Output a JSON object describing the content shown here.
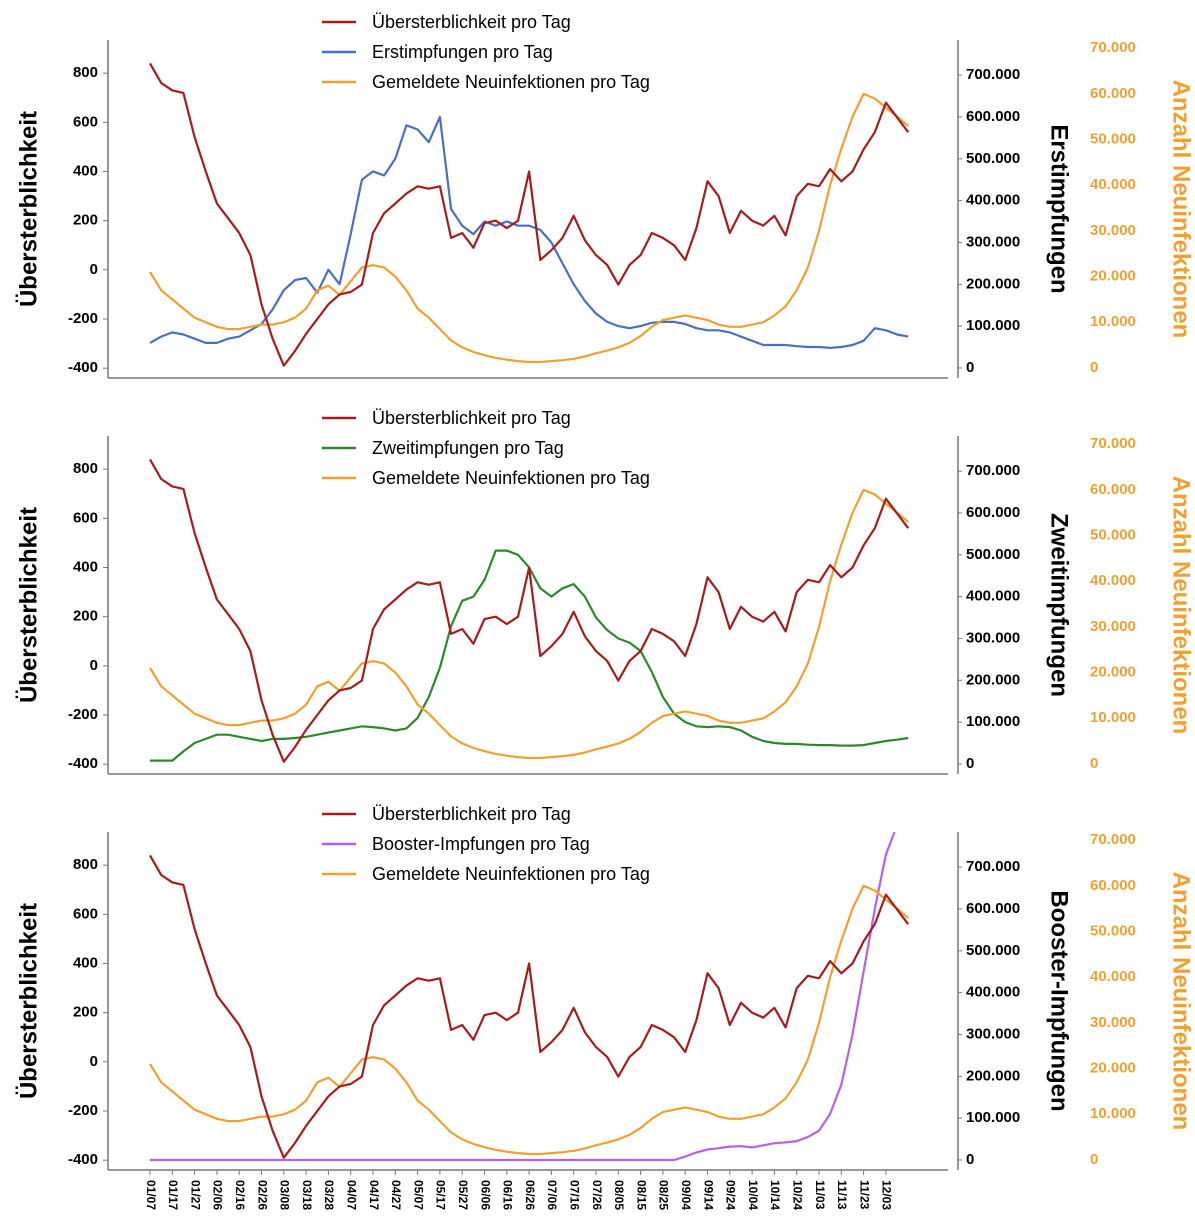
{
  "chart_data": [
    {
      "type": "line",
      "ylabel": "Übersterblichkeit",
      "y2label": "Erstimpfungen",
      "y3label": "Anzahl Neuinfektionen",
      "ylim": [
        -440,
        935
      ],
      "yticks": [
        -400,
        -200,
        0,
        200,
        400,
        600,
        800
      ],
      "y2lim": [
        -24000,
        784000
      ],
      "y2ticks": [
        0,
        {
          "value": 100000,
          "label": "100.000"
        },
        {
          "value": 200000,
          "label": "200.000"
        },
        {
          "value": 300000,
          "label": "300.000"
        },
        {
          "value": 400000,
          "label": "400.000"
        },
        {
          "value": 500000,
          "label": "500.000"
        },
        {
          "value": 600000,
          "label": "600.000"
        },
        {
          "value": 700000,
          "label": "700.000"
        }
      ],
      "y3lim": [
        -2200,
        71800
      ],
      "y3ticks": [
        0,
        {
          "value": 10000,
          "label": "10.000"
        },
        {
          "value": 20000,
          "label": "20.000"
        },
        {
          "value": 30000,
          "label": "30.000"
        },
        {
          "value": 40000,
          "label": "40.000"
        },
        {
          "value": 50000,
          "label": "50.000"
        },
        {
          "value": 60000,
          "label": "60.000"
        },
        {
          "value": 70000,
          "label": "70.000"
        }
      ],
      "series": [
        {
          "name": "Übersterblichkeit pro Tag",
          "color": "#a51c1c",
          "axis": "y",
          "values": [
            840,
            760,
            730,
            720,
            540,
            400,
            270,
            210,
            150,
            60,
            -140,
            -280,
            -390,
            -330,
            -260,
            -200,
            -140,
            -100,
            -90,
            -60,
            150,
            230,
            270,
            310,
            340,
            330,
            340,
            130,
            150,
            90,
            190,
            200,
            170,
            200,
            400,
            40,
            80,
            130,
            220,
            120,
            60,
            20,
            -60,
            20,
            60,
            150,
            130,
            100,
            40,
            170,
            360,
            300,
            150,
            240,
            200,
            180,
            220,
            140,
            300,
            350,
            340,
            410,
            360,
            400,
            490,
            560,
            680,
            620,
            560
          ]
        },
        {
          "name": "Erstimpfungen pro Tag",
          "color": "#4a6fc1",
          "axis": "y2",
          "values": [
            60000,
            75000,
            85000,
            80000,
            70000,
            60000,
            60000,
            70000,
            75000,
            90000,
            105000,
            140000,
            186000,
            210000,
            215000,
            180000,
            235000,
            200000,
            320000,
            450000,
            470000,
            460000,
            500000,
            580000,
            570000,
            540000,
            600000,
            380000,
            340000,
            320000,
            350000,
            340000,
            350000,
            340000,
            340000,
            330000,
            300000,
            250000,
            200000,
            160000,
            130000,
            110000,
            100000,
            95000,
            100000,
            108000,
            110000,
            110000,
            105000,
            95000,
            90000,
            90000,
            85000,
            75000,
            65000,
            55000,
            55000,
            55000,
            52000,
            50000,
            50000,
            48000,
            50000,
            55000,
            65000,
            95000,
            90000,
            80000,
            75000
          ]
        },
        {
          "name": "Gemeldete Neuinfektionen pro Tag",
          "color": "#f0a030",
          "axis": "y3",
          "values": [
            21000,
            17000,
            15000,
            13000,
            11000,
            10000,
            9000,
            8500,
            8500,
            9000,
            9500,
            9500,
            10000,
            11000,
            13000,
            17000,
            18000,
            16000,
            19000,
            22000,
            22500,
            22000,
            20000,
            17000,
            13000,
            11000,
            8500,
            6000,
            4500,
            3500,
            2800,
            2200,
            1800,
            1500,
            1300,
            1300,
            1500,
            1700,
            2000,
            2500,
            3200,
            3800,
            4500,
            5500,
            7000,
            9000,
            10500,
            11000,
            11500,
            11000,
            10500,
            9500,
            9000,
            9000,
            9500,
            10000,
            11500,
            13500,
            17000,
            22000,
            30000,
            40000,
            48000,
            55000,
            60000,
            59000,
            57000,
            55000,
            53000
          ]
        }
      ]
    },
    {
      "type": "line",
      "ylabel": "Übersterblichkeit",
      "y2label": "Zweitimpfungen",
      "y3label": "Anzahl Neuinfektionen",
      "ylim": [
        -440,
        935
      ],
      "yticks": [
        -400,
        -200,
        0,
        200,
        400,
        600,
        800
      ],
      "y2lim": [
        -24000,
        784000
      ],
      "y2ticks": [
        0,
        {
          "value": 100000,
          "label": "100.000"
        },
        {
          "value": 200000,
          "label": "200.000"
        },
        {
          "value": 300000,
          "label": "300.000"
        },
        {
          "value": 400000,
          "label": "400.000"
        },
        {
          "value": 500000,
          "label": "500.000"
        },
        {
          "value": 600000,
          "label": "600.000"
        },
        {
          "value": 700000,
          "label": "700.000"
        }
      ],
      "y3lim": [
        -2200,
        71800
      ],
      "y3ticks": [
        0,
        {
          "value": 10000,
          "label": "10.000"
        },
        {
          "value": 20000,
          "label": "20.000"
        },
        {
          "value": 30000,
          "label": "30.000"
        },
        {
          "value": 40000,
          "label": "40.000"
        },
        {
          "value": 50000,
          "label": "50.000"
        },
        {
          "value": 60000,
          "label": "60.000"
        },
        {
          "value": 70000,
          "label": "70.000"
        }
      ],
      "series": [
        {
          "name": "Übersterblichkeit pro Tag",
          "color": "#a51c1c",
          "axis": "y",
          "values": [
            840,
            760,
            730,
            720,
            540,
            400,
            270,
            210,
            150,
            60,
            -140,
            -280,
            -390,
            -330,
            -260,
            -200,
            -140,
            -100,
            -90,
            -60,
            150,
            230,
            270,
            310,
            340,
            330,
            340,
            130,
            150,
            90,
            190,
            200,
            170,
            200,
            400,
            40,
            80,
            130,
            220,
            120,
            60,
            20,
            -60,
            20,
            60,
            150,
            130,
            100,
            40,
            170,
            360,
            300,
            150,
            240,
            200,
            180,
            220,
            140,
            300,
            350,
            340,
            410,
            360,
            400,
            490,
            560,
            680,
            620,
            560
          ]
        },
        {
          "name": "Zweitimpfungen pro Tag",
          "color": "#2a8a2a",
          "axis": "y2",
          "values": [
            8000,
            8000,
            8000,
            30000,
            50000,
            60000,
            70000,
            70000,
            65000,
            60000,
            55000,
            60000,
            60000,
            62000,
            65000,
            70000,
            75000,
            80000,
            85000,
            90000,
            88000,
            85000,
            80000,
            85000,
            110000,
            160000,
            230000,
            330000,
            390000,
            400000,
            440000,
            510000,
            510000,
            500000,
            470000,
            420000,
            400000,
            420000,
            430000,
            400000,
            350000,
            320000,
            300000,
            290000,
            270000,
            220000,
            160000,
            120000,
            100000,
            90000,
            88000,
            90000,
            88000,
            80000,
            65000,
            55000,
            50000,
            48000,
            48000,
            46000,
            45000,
            45000,
            44000,
            44000,
            45000,
            50000,
            55000,
            58000,
            62000
          ]
        },
        {
          "name": "Gemeldete Neuinfektionen pro Tag",
          "color": "#f0a030",
          "axis": "y3",
          "values": [
            21000,
            17000,
            15000,
            13000,
            11000,
            10000,
            9000,
            8500,
            8500,
            9000,
            9500,
            9500,
            10000,
            11000,
            13000,
            17000,
            18000,
            16000,
            19000,
            22000,
            22500,
            22000,
            20000,
            17000,
            13000,
            11000,
            8500,
            6000,
            4500,
            3500,
            2800,
            2200,
            1800,
            1500,
            1300,
            1300,
            1500,
            1700,
            2000,
            2500,
            3200,
            3800,
            4500,
            5500,
            7000,
            9000,
            10500,
            11000,
            11500,
            11000,
            10500,
            9500,
            9000,
            9000,
            9500,
            10000,
            11500,
            13500,
            17000,
            22000,
            30000,
            40000,
            48000,
            55000,
            60000,
            59000,
            57000,
            55000,
            53000
          ]
        }
      ]
    },
    {
      "type": "line",
      "ylabel": "Übersterblichkeit",
      "y2label": "Booster-Impfungen",
      "y3label": "Anzahl Neuinfektionen",
      "categories": [
        "01/07",
        null,
        "01/17",
        null,
        "01/27",
        null,
        "02/06",
        null,
        "02/16",
        null,
        "02/26",
        null,
        "03/08",
        null,
        "03/18",
        null,
        "03/28",
        null,
        "04/07",
        null,
        "04/17",
        null,
        "04/27",
        null,
        "05/07",
        null,
        "05/17",
        null,
        "05/27",
        null,
        "06/06",
        null,
        "06/16",
        null,
        "06/26",
        null,
        "07/06",
        null,
        "07/16",
        null,
        "07/26",
        null,
        "08/05",
        null,
        "08/15",
        null,
        "08/25",
        null,
        "09/04",
        null,
        "09/14",
        null,
        "09/24",
        null,
        "10/04",
        null,
        "10/14",
        null,
        "10/24",
        null,
        "11/03",
        null,
        "11/13",
        null,
        "11/23",
        null,
        "12/03",
        null,
        null
      ],
      "ylim": [
        -440,
        935
      ],
      "yticks": [
        -400,
        -200,
        0,
        200,
        400,
        600,
        800
      ],
      "y2lim": [
        -24000,
        784000
      ],
      "y2ticks": [
        0,
        {
          "value": 100000,
          "label": "100.000"
        },
        {
          "value": 200000,
          "label": "200.000"
        },
        {
          "value": 300000,
          "label": "300.000"
        },
        {
          "value": 400000,
          "label": "400.000"
        },
        {
          "value": 500000,
          "label": "500.000"
        },
        {
          "value": 600000,
          "label": "600.000"
        },
        {
          "value": 700000,
          "label": "700.000"
        }
      ],
      "y3lim": [
        -2200,
        71800
      ],
      "y3ticks": [
        0,
        {
          "value": 10000,
          "label": "10.000"
        },
        {
          "value": 20000,
          "label": "20.000"
        },
        {
          "value": 30000,
          "label": "30.000"
        },
        {
          "value": 40000,
          "label": "40.000"
        },
        {
          "value": 50000,
          "label": "50.000"
        },
        {
          "value": 60000,
          "label": "60.000"
        },
        {
          "value": 70000,
          "label": "70.000"
        }
      ],
      "series": [
        {
          "name": "Übersterblichkeit pro Tag",
          "color": "#a51c1c",
          "axis": "y",
          "values": [
            840,
            760,
            730,
            720,
            540,
            400,
            270,
            210,
            150,
            60,
            -140,
            -280,
            -390,
            -330,
            -260,
            -200,
            -140,
            -100,
            -90,
            -60,
            150,
            230,
            270,
            310,
            340,
            330,
            340,
            130,
            150,
            90,
            190,
            200,
            170,
            200,
            400,
            40,
            80,
            130,
            220,
            120,
            60,
            20,
            -60,
            20,
            60,
            150,
            130,
            100,
            40,
            170,
            360,
            300,
            150,
            240,
            200,
            180,
            220,
            140,
            300,
            350,
            340,
            410,
            360,
            400,
            490,
            560,
            680,
            620,
            560
          ]
        },
        {
          "name": "Booster-Impfungen pro Tag",
          "color": "#b061f0",
          "axis": "y2",
          "values": [
            0,
            0,
            0,
            0,
            0,
            0,
            0,
            0,
            0,
            0,
            0,
            0,
            0,
            0,
            0,
            0,
            0,
            0,
            0,
            0,
            0,
            0,
            0,
            0,
            0,
            0,
            0,
            0,
            0,
            0,
            0,
            0,
            0,
            0,
            0,
            0,
            0,
            0,
            0,
            0,
            0,
            0,
            0,
            0,
            0,
            0,
            0,
            0,
            8000,
            18000,
            25000,
            28000,
            32000,
            33000,
            30000,
            35000,
            40000,
            42000,
            45000,
            55000,
            70000,
            110000,
            180000,
            300000,
            450000,
            600000,
            730000,
            800000,
            null
          ]
        },
        {
          "name": "Gemeldete Neuinfektionen pro Tag",
          "color": "#f0a030",
          "axis": "y3",
          "values": [
            21000,
            17000,
            15000,
            13000,
            11000,
            10000,
            9000,
            8500,
            8500,
            9000,
            9500,
            9500,
            10000,
            11000,
            13000,
            17000,
            18000,
            16000,
            19000,
            22000,
            22500,
            22000,
            20000,
            17000,
            13000,
            11000,
            8500,
            6000,
            4500,
            3500,
            2800,
            2200,
            1800,
            1500,
            1300,
            1300,
            1500,
            1700,
            2000,
            2500,
            3200,
            3800,
            4500,
            5500,
            7000,
            9000,
            10500,
            11000,
            11500,
            11000,
            10500,
            9500,
            9000,
            9000,
            9500,
            10000,
            11500,
            13500,
            17000,
            22000,
            30000,
            40000,
            48000,
            55000,
            60000,
            59000,
            57000,
            55000,
            53000
          ]
        }
      ]
    }
  ]
}
